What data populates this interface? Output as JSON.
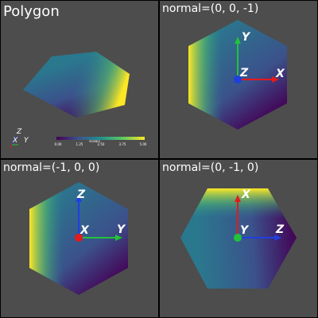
{
  "panels": [
    {
      "title": "Polygon"
    },
    {
      "title": "normal=(0, 0, -1)",
      "h_axis": "X",
      "v_axis": "Y",
      "center_axis": "Z"
    },
    {
      "title": "normal=(-1, 0, 0)",
      "h_axis": "Y",
      "v_axis": "Z",
      "center_axis": "X"
    },
    {
      "title": "normal=(0, -1, 0)",
      "h_axis": "Z",
      "v_axis": "X",
      "center_axis": "Y"
    }
  ],
  "scalar_bar": {
    "title": "scalars",
    "ticks": [
      "0.00",
      "1.25",
      "2.50",
      "3.75",
      "5.00"
    ]
  },
  "orientation_widget": {
    "z": "Z",
    "x": "X",
    "y": "Y"
  },
  "colors": {
    "background": "#4d4d4d",
    "x_axis": "#e41a1c",
    "y_axis": "#22c33a",
    "z_axis": "#1f3fe0",
    "viridis": [
      "#440154",
      "#3b528b",
      "#21908d",
      "#5dc963",
      "#fde725"
    ]
  }
}
